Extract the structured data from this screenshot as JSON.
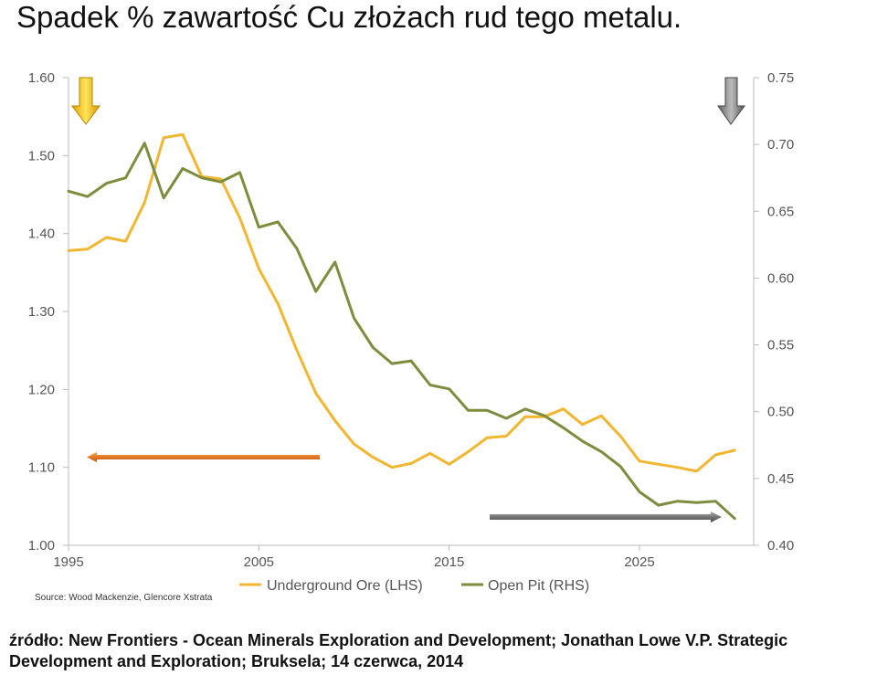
{
  "title": "Spadek % zawartość Cu złożach rud tego metalu.",
  "caption": {
    "line1": "źródło: New Frontiers - Ocean Minerals Exploration and Development;  Jonathan Lowe V.P. Strategic",
    "line2": "Development and Exploration; Bruksela; 14 czerwca, 2014"
  },
  "chart_data": {
    "type": "line",
    "source": "Source: Wood Mackenzie, Glencore Xstrata",
    "x_ticks": [
      "1995",
      "2005",
      "2015",
      "2025"
    ],
    "xlim": [
      1995,
      2031
    ],
    "y_left_ticks": [
      "1.00",
      "1.10",
      "1.20",
      "1.30",
      "1.40",
      "1.50",
      "1.60"
    ],
    "y_left_lim": [
      1.0,
      1.6
    ],
    "y_right_ticks": [
      "0.40",
      "0.45",
      "0.50",
      "0.55",
      "0.60",
      "0.65",
      "0.70",
      "0.75"
    ],
    "y_right_lim": [
      0.4,
      0.75
    ],
    "legend_position": "bottom",
    "series": [
      {
        "name": "Underground Ore (LHS)",
        "axis": "left",
        "color": "#f2b630",
        "x": [
          1995,
          1996,
          1997,
          1998,
          1999,
          2000,
          2001,
          2002,
          2003,
          2004,
          2005,
          2006,
          2007,
          2008,
          2009,
          2010,
          2011,
          2012,
          2013,
          2014,
          2015,
          2016,
          2017,
          2018,
          2019,
          2020,
          2021,
          2022,
          2023,
          2024,
          2025,
          2026,
          2027,
          2028,
          2029,
          2030
        ],
        "values": [
          1.378,
          1.38,
          1.395,
          1.39,
          1.44,
          1.523,
          1.527,
          1.473,
          1.47,
          1.42,
          1.355,
          1.31,
          1.25,
          1.195,
          1.16,
          1.13,
          1.113,
          1.1,
          1.105,
          1.118,
          1.104,
          1.12,
          1.138,
          1.14,
          1.165,
          1.165,
          1.175,
          1.155,
          1.166,
          1.14,
          1.108,
          1.104,
          1.1,
          1.095,
          1.116,
          1.122
        ]
      },
      {
        "name": "Open Pit (RHS)",
        "axis": "right",
        "color": "#7d8c3d",
        "x": [
          1995,
          1996,
          1997,
          1998,
          1999,
          2000,
          2001,
          2002,
          2003,
          2004,
          2005,
          2006,
          2007,
          2008,
          2009,
          2010,
          2011,
          2012,
          2013,
          2014,
          2015,
          2016,
          2017,
          2018,
          2019,
          2020,
          2021,
          2022,
          2023,
          2024,
          2025,
          2026,
          2027,
          2028,
          2029,
          2030
        ],
        "values": [
          0.665,
          0.661,
          0.671,
          0.675,
          0.701,
          0.66,
          0.682,
          0.675,
          0.672,
          0.679,
          0.638,
          0.642,
          0.622,
          0.59,
          0.612,
          0.57,
          0.548,
          0.536,
          0.538,
          0.52,
          0.517,
          0.501,
          0.501,
          0.495,
          0.502,
          0.497,
          0.488,
          0.478,
          0.47,
          0.459,
          0.44,
          0.43,
          0.433,
          0.432,
          0.433,
          0.42
        ]
      }
    ]
  }
}
